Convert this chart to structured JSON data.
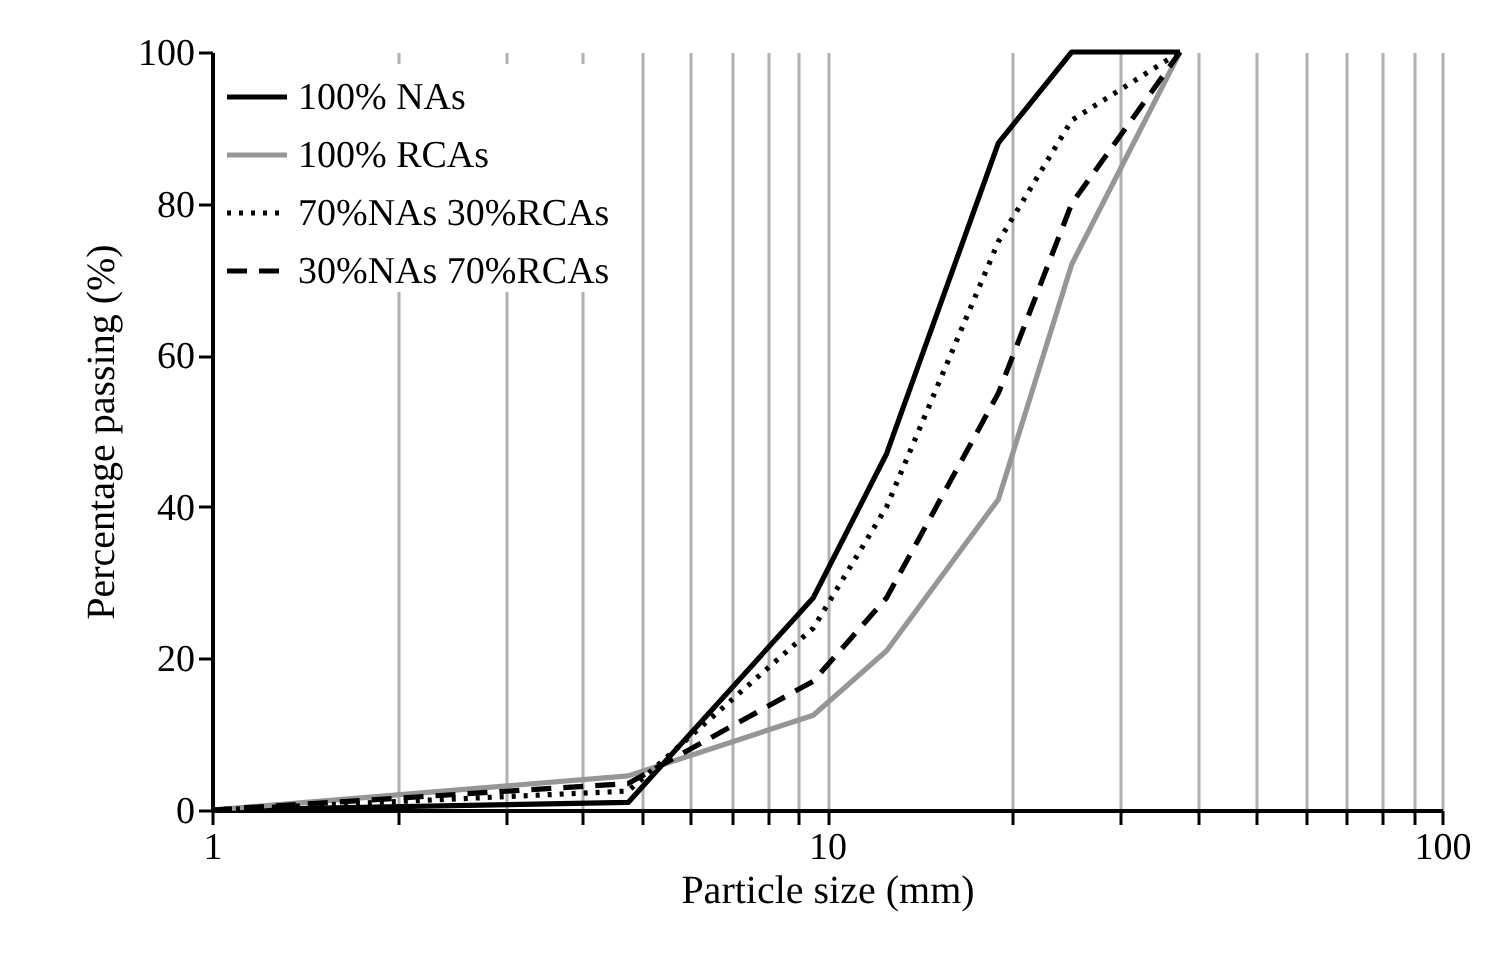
{
  "chart_data": {
    "type": "line",
    "xlabel": "Particle size (mm)",
    "ylabel": "Percentage passing (%)",
    "x": [
      1,
      4.75,
      9.5,
      12.5,
      19,
      25,
      37.5
    ],
    "series": [
      {
        "name": "100% NAs",
        "color": "#000000",
        "line_style": "solid",
        "values": [
          0,
          1,
          28,
          47,
          88,
          100,
          100
        ]
      },
      {
        "name": "100% RCAs",
        "color": "#969696",
        "line_style": "solid",
        "values": [
          0,
          4.5,
          12.5,
          21,
          41,
          72,
          100
        ]
      },
      {
        "name": "70%NAs 30%RCAs",
        "color": "#000000",
        "line_style": "dotted",
        "values": [
          0,
          2.5,
          24,
          40,
          75,
          91,
          100
        ]
      },
      {
        "name": "30%NAs 70%RCAs",
        "color": "#000000",
        "line_style": "dashed",
        "values": [
          0,
          3.5,
          17,
          28,
          55,
          80,
          100
        ]
      }
    ],
    "log": "x",
    "xlim": [
      1,
      100
    ],
    "xticks": [
      1,
      {
        "value": 2,
        "label": null
      },
      {
        "value": 3,
        "label": null
      },
      {
        "value": 4,
        "label": null
      },
      {
        "value": 5,
        "label": null
      },
      {
        "value": 6,
        "label": null
      },
      {
        "value": 7,
        "label": null
      },
      {
        "value": 8,
        "label": null
      },
      {
        "value": 9,
        "label": null
      },
      10,
      {
        "value": 20,
        "label": null
      },
      {
        "value": 30,
        "label": null
      },
      {
        "value": 40,
        "label": null
      },
      {
        "value": 50,
        "label": null
      },
      {
        "value": 60,
        "label": null
      },
      {
        "value": 70,
        "label": null
      },
      {
        "value": 80,
        "label": null
      },
      {
        "value": 90,
        "label": null
      },
      100
    ],
    "ylim": [
      0,
      100
    ],
    "yticks": [
      0,
      20,
      40,
      60,
      80,
      100
    ],
    "grid": "x",
    "legend": "top left"
  }
}
